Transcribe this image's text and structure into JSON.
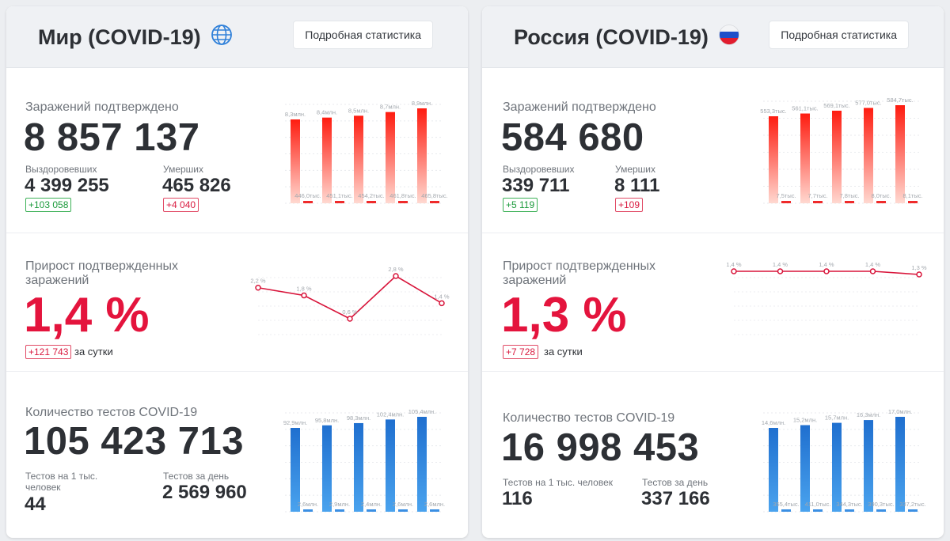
{
  "world": {
    "title": "Мир (COVID-19)",
    "details_button": "Подробная статистика",
    "confirmed": {
      "label": "Заражений подтверждено",
      "value": "8 857 137",
      "recovered_label": "Выздоровевших",
      "recovered_value": "4 399 255",
      "recovered_delta": "+103 058",
      "deaths_label": "Умерших",
      "deaths_value": "465 826",
      "deaths_delta": "+4 040"
    },
    "growth": {
      "label": "Прирост подтвержденных заражений",
      "value": "1,4 %",
      "delta": "+121 743",
      "per_day": "за сутки"
    },
    "tests": {
      "label": "Количество тестов COVID-19",
      "value": "105 423 713",
      "per_thousand_label": "Тестов на 1 тыс. человек",
      "per_thousand_value": "44",
      "per_day_label": "Тестов за день",
      "per_day_value": "2 569 960"
    }
  },
  "russia": {
    "title": "Россия (COVID-19)",
    "details_button": "Подробная статистика",
    "confirmed": {
      "label": "Заражений подтверждено",
      "value": "584 680",
      "recovered_label": "Выздоровевших",
      "recovered_value": "339 711",
      "recovered_delta": "+5 119",
      "deaths_label": "Умерших",
      "deaths_value": "8 111",
      "deaths_delta": "+109"
    },
    "growth": {
      "label": "Прирост подтвержденных заражений",
      "value": "1,3 %",
      "delta": "+7 728",
      "per_day": "за сутки"
    },
    "tests": {
      "label": "Количество тестов COVID-19",
      "value": "16 998 453",
      "per_thousand_label": "Тестов на 1 тыс. человек",
      "per_thousand_value": "116",
      "per_day_label": "Тестов за день",
      "per_day_value": "337 166"
    }
  },
  "colors": {
    "red_bar_top": "#fe1c10",
    "red_bar_bottom": "#ffd8d0",
    "blue_bar_top": "#1f6fcf",
    "blue_bar_bottom": "#4aa3ee",
    "line": "#d8143a",
    "delta_green": "#1b9a3b",
    "delta_red": "#d91a3f"
  },
  "chart_data": [
    {
      "id": "world-confirmed",
      "type": "bar",
      "series": [
        {
          "values": [
            8.3,
            8.4,
            8.5,
            8.7,
            8.9
          ],
          "labels": [
            "8,3млн.",
            "8,4млн.",
            "8,5млн.",
            "8,7млн.",
            "8,9млн."
          ]
        },
        {
          "values": [
            0.446,
            0.451,
            0.454,
            0.462,
            0.466
          ],
          "labels": [
            "446,0тыс.",
            "451,1тыс.",
            "454,2тыс.",
            "461,8тыс.",
            "465,8тыс."
          ]
        }
      ]
    },
    {
      "id": "world-growth",
      "type": "line",
      "values": [
        2.2,
        1.8,
        0.6,
        2.8,
        1.4
      ],
      "labels": [
        "2,2 %",
        "1,8 %",
        "0,6 %",
        "2,8 %",
        "1,4 %"
      ]
    },
    {
      "id": "world-tests",
      "type": "bar",
      "series": [
        {
          "values": [
            92.9,
            95.8,
            98.3,
            102.4,
            105.4
          ],
          "labels": [
            "92,9млн.",
            "95,8млн.",
            "98,3млн.",
            "102,4млн.",
            "105,4млн."
          ]
        },
        {
          "values": [
            2.6,
            2.9,
            2.4,
            2.6,
            2.6
          ],
          "labels": [
            "2,6млн.",
            "2,9млн.",
            "2,4млн.",
            "2,6млн.",
            "2,6млн."
          ]
        }
      ]
    },
    {
      "id": "russia-confirmed",
      "type": "bar",
      "series": [
        {
          "values": [
            553.3,
            561.1,
            569.1,
            577.0,
            584.7
          ],
          "labels": [
            "553,3тыс.",
            "561,1тыс.",
            "569,1тыс.",
            "577,0тыс.",
            "584,7тыс."
          ]
        },
        {
          "values": [
            7.5,
            7.7,
            7.8,
            8.0,
            8.1
          ],
          "labels": [
            "7,5тыс.",
            "7,7тыс.",
            "7,8тыс.",
            "8,0тыс.",
            "8,1тыс."
          ]
        }
      ]
    },
    {
      "id": "russia-growth",
      "type": "line",
      "values": [
        1.4,
        1.4,
        1.4,
        1.4,
        1.3
      ],
      "labels": [
        "1,4 %",
        "1,4 %",
        "1,4 %",
        "1,4 %",
        "1,3 %"
      ]
    },
    {
      "id": "russia-tests",
      "type": "bar",
      "series": [
        {
          "values": [
            14.6,
            15.2,
            15.7,
            16.3,
            17.0
          ],
          "labels": [
            "14,6млн.",
            "15,2млн.",
            "15,7млн.",
            "16,3млн.",
            "17,0млн."
          ]
        },
        {
          "values": [
            0.3554,
            0.411,
            0.3443,
            0.3903,
            0.3372
          ],
          "labels": [
            "355,4тыс.",
            "411,0тыс.",
            "344,3тыс.",
            "390,3тыс.",
            "337,2тыс."
          ]
        }
      ]
    }
  ]
}
